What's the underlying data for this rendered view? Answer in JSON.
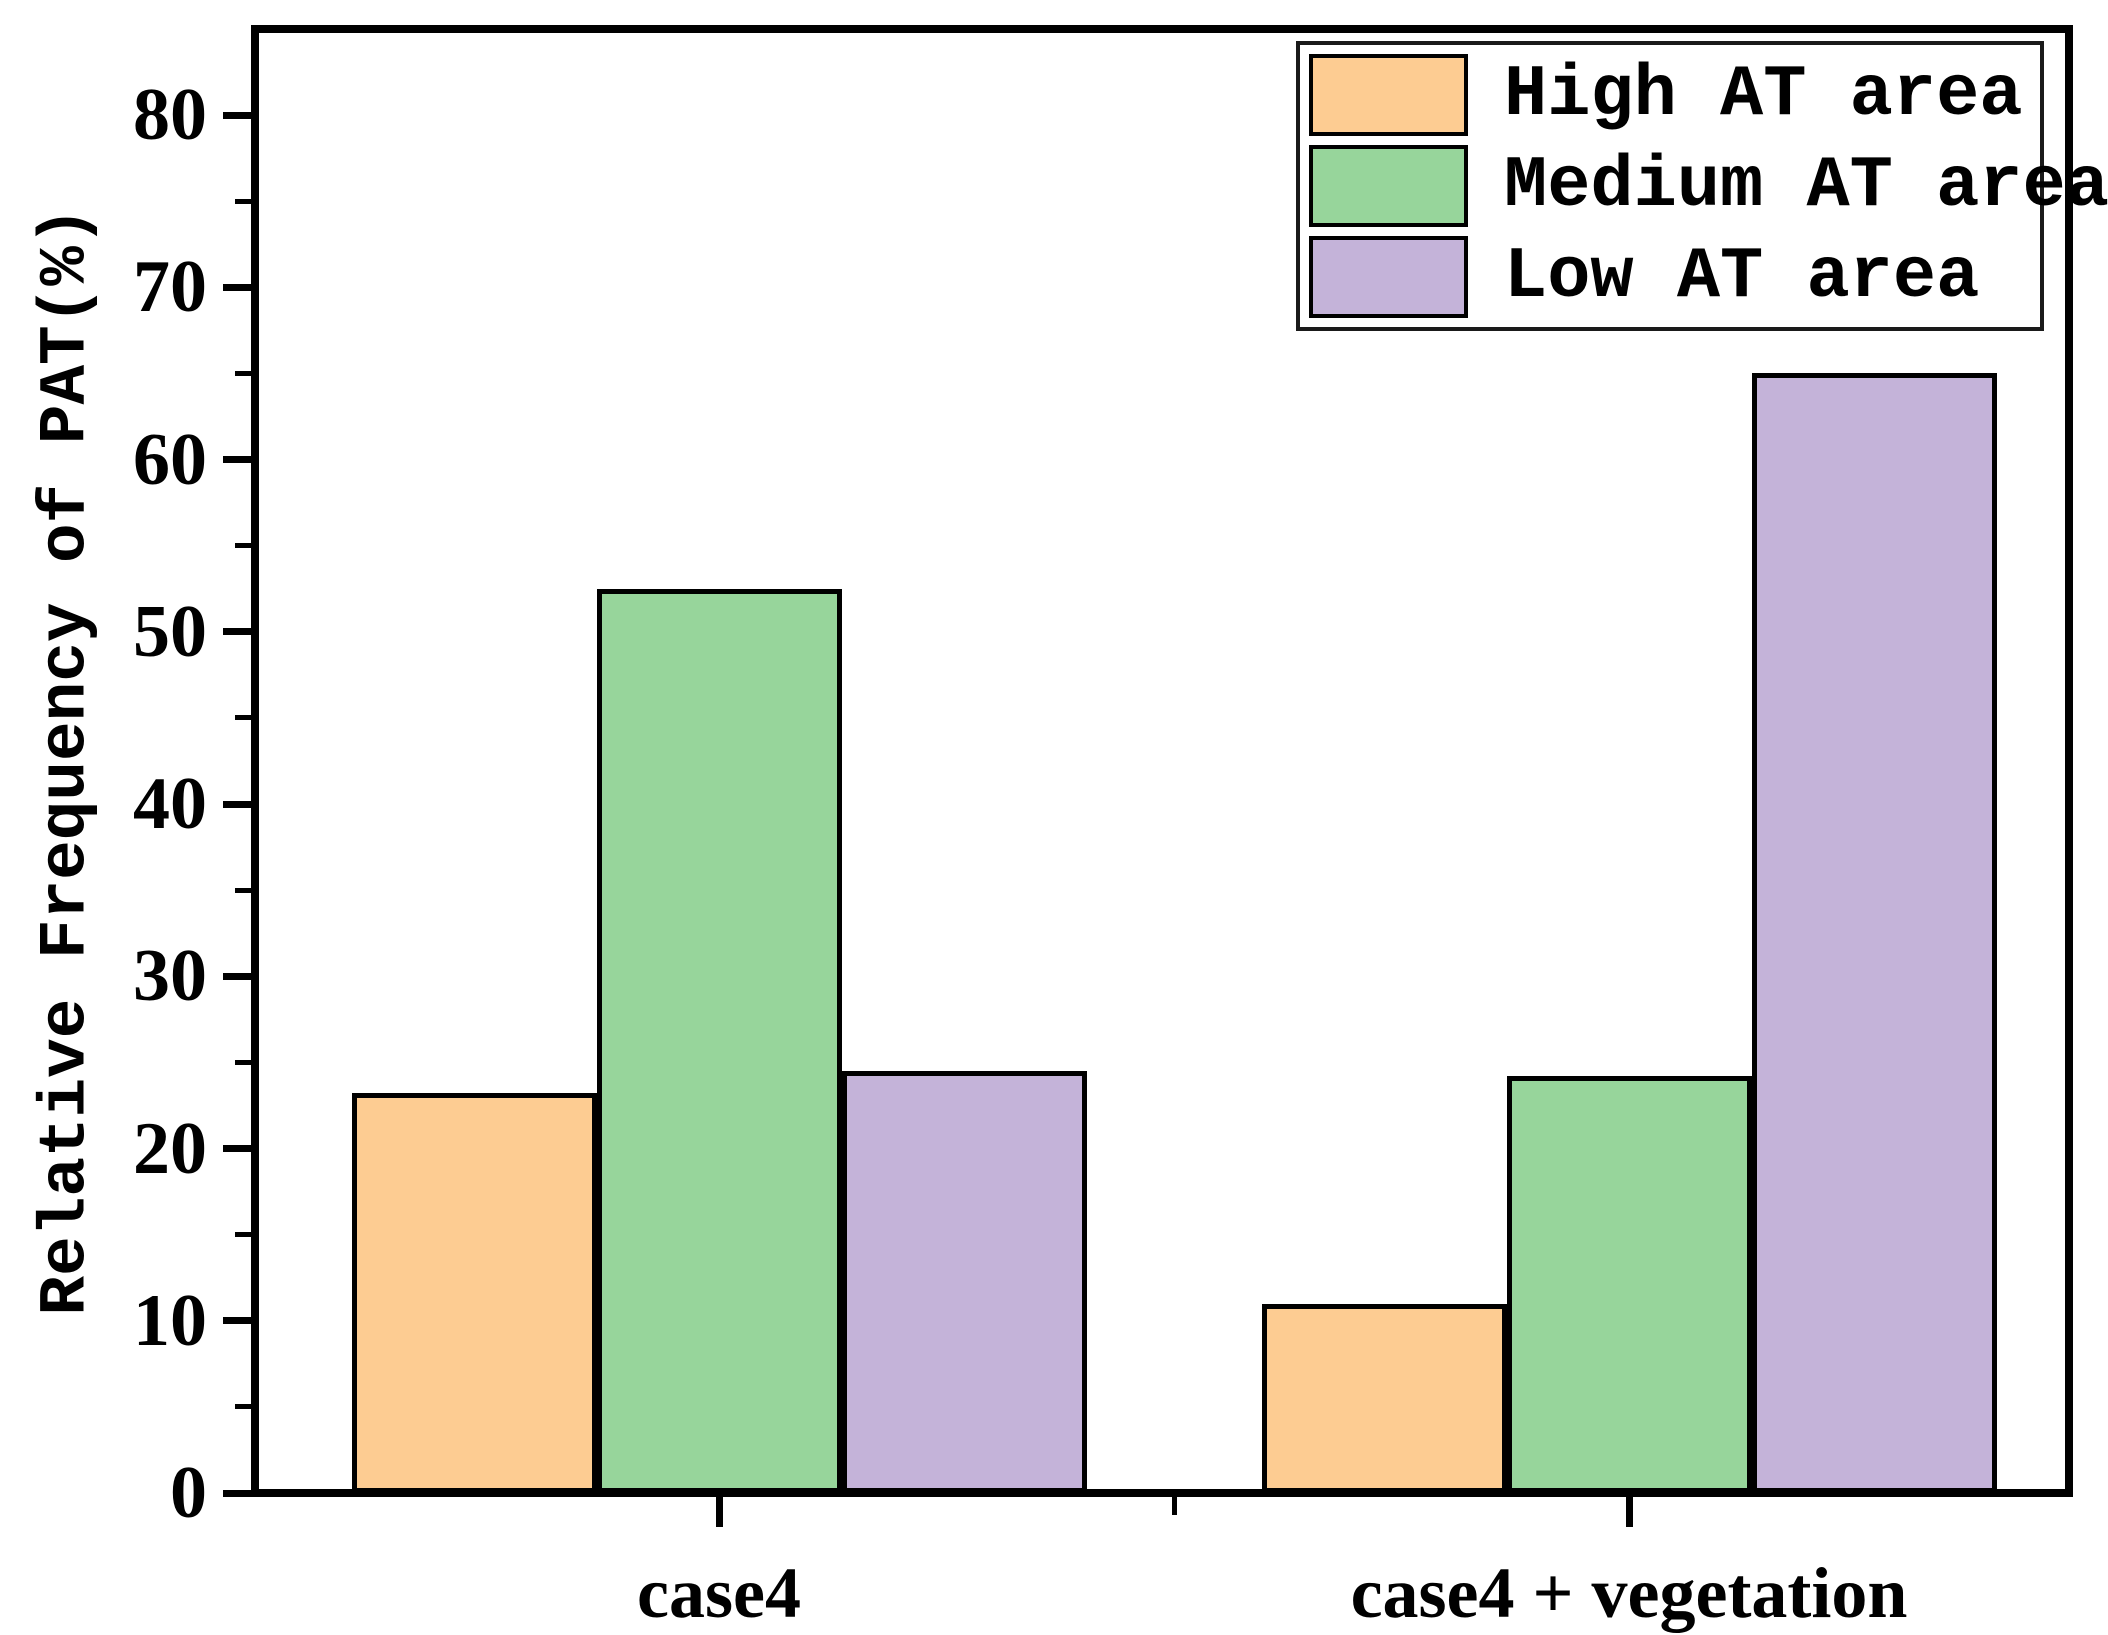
{
  "chart_data": {
    "type": "bar",
    "title": "",
    "xlabel": "",
    "ylabel": "Relative Frequency of PAT(%)",
    "categories": [
      "case4",
      "case4 + vegetation"
    ],
    "series": [
      {
        "name": "High AT area",
        "color": "#FDCC92",
        "values": [
          23.2,
          11.0
        ]
      },
      {
        "name": "Medium AT area",
        "color": "#97D59B",
        "values": [
          52.5,
          24.2
        ]
      },
      {
        "name": "Low AT area",
        "color": "#C4B3D9",
        "values": [
          24.5,
          65.0
        ]
      }
    ],
    "ylim": [
      0,
      85
    ],
    "yticks": [
      0,
      10,
      20,
      30,
      40,
      50,
      60,
      70,
      80
    ],
    "y_minor_ticks": [
      5,
      15,
      25,
      35,
      45,
      55,
      65,
      75
    ],
    "bar_edge_color": "#000000",
    "axis_color": "#000000",
    "legend_position": "top-right",
    "grid": false
  }
}
